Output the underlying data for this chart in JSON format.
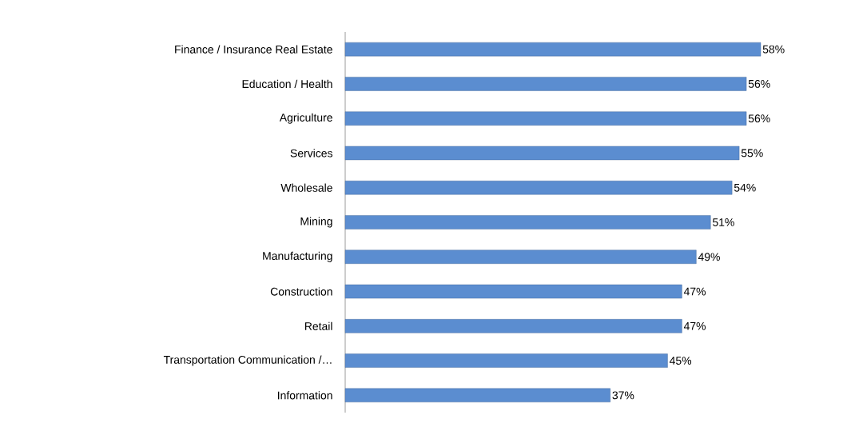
{
  "chart_data": {
    "type": "bar",
    "orientation": "horizontal",
    "color": "#5b8dd0",
    "categories": [
      "Finance / Insurance Real Estate",
      "Education / Health",
      "Agriculture",
      "Services",
      "Wholesale",
      "Mining",
      "Manufacturing",
      "Construction",
      "Retail",
      "Transportation Communication /…",
      "Information"
    ],
    "values": [
      58,
      56,
      56,
      55,
      54,
      51,
      49,
      47,
      47,
      45,
      37
    ],
    "value_labels": [
      "58%",
      "56%",
      "56%",
      "55%",
      "54%",
      "51%",
      "49%",
      "47%",
      "47%",
      "45%",
      "37%"
    ],
    "stacked": false
  }
}
